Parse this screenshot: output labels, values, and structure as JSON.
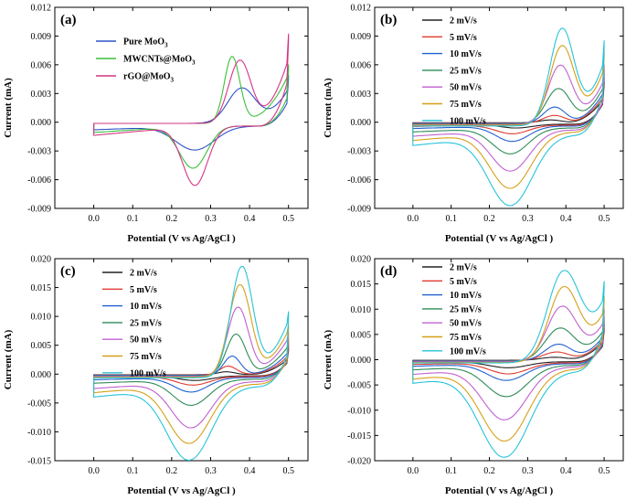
{
  "chart_data": [
    {
      "type": "line",
      "panel_label": "(a)",
      "xlabel": "Potential (V vs Ag/AgCl )",
      "ylabel": "Current (mA)",
      "xlim": [
        -0.1,
        0.55
      ],
      "ylim": [
        -0.009,
        0.012
      ],
      "xticks": [
        0.0,
        0.1,
        0.2,
        0.3,
        0.4,
        0.5
      ],
      "yticks": [
        -0.009,
        -0.006,
        -0.003,
        0.0,
        0.003,
        0.006,
        0.009,
        0.012
      ],
      "legend_position": "top-left",
      "series": [
        {
          "name": "Pure MoO3",
          "legend": [
            "Pure MoO",
            "3",
            ""
          ],
          "color": "#2f52c9",
          "params": {
            "base": 0.0,
            "ox": 0.0037,
            "oxPos": 0.38,
            "oxW": 0.05,
            "red": 0.0025,
            "redPos": 0.26,
            "redW": 0.07,
            "end": 0.0049,
            "startGap": 0.0004
          }
        },
        {
          "name": "MWCNTs@MoO3",
          "legend": [
            "MWCNTs@MoO",
            "3",
            ""
          ],
          "color": "#3bbf3b",
          "params": {
            "base": 0.0,
            "ox": 0.007,
            "oxPos": 0.355,
            "oxW": 0.028,
            "red": 0.0044,
            "redPos": 0.255,
            "redW": 0.05,
            "end": 0.006,
            "startGap": 0.0004
          }
        },
        {
          "name": "rGO@MoO3",
          "legend": [
            "rGO@MoO",
            "3",
            ""
          ],
          "color": "#d63584",
          "params": {
            "base": 0.0,
            "ox": 0.0066,
            "oxPos": 0.375,
            "oxW": 0.04,
            "red": 0.0062,
            "redPos": 0.26,
            "redW": 0.045,
            "end": 0.0092,
            "startGap": 0.0004
          }
        }
      ]
    },
    {
      "type": "line",
      "panel_label": "(b)",
      "xlabel": "Potential (V vs Ag/AgCl )",
      "ylabel": "Current (mA)",
      "xlim": [
        -0.1,
        0.55
      ],
      "ylim": [
        -0.009,
        0.012
      ],
      "xticks": [
        0.0,
        0.1,
        0.2,
        0.3,
        0.4,
        0.5
      ],
      "yticks": [
        -0.009,
        -0.006,
        -0.003,
        0.0,
        0.003,
        0.006,
        0.009,
        0.012
      ],
      "legend_position": "top-left",
      "series": [
        {
          "name": "2 mV/s",
          "color": "#222222",
          "params": {
            "ox": 0.0003,
            "oxPos": 0.36,
            "oxW": 0.04,
            "red": 0.0004,
            "redPos": 0.27,
            "redW": 0.06,
            "end": 0.0042,
            "startGap": 0.0002
          }
        },
        {
          "name": "5 mV/s",
          "color": "#e03a2f",
          "params": {
            "ox": 0.0008,
            "oxPos": 0.37,
            "oxW": 0.04,
            "red": 0.0009,
            "redPos": 0.26,
            "redW": 0.06,
            "end": 0.0046,
            "startGap": 0.0003
          }
        },
        {
          "name": "10 mV/s",
          "color": "#2060d0",
          "params": {
            "ox": 0.0017,
            "oxPos": 0.37,
            "oxW": 0.04,
            "red": 0.0016,
            "redPos": 0.26,
            "redW": 0.06,
            "end": 0.005,
            "startGap": 0.0004
          }
        },
        {
          "name": "25 mV/s",
          "color": "#2e8b57",
          "params": {
            "ox": 0.0037,
            "oxPos": 0.38,
            "oxW": 0.045,
            "red": 0.0027,
            "redPos": 0.255,
            "redW": 0.065,
            "end": 0.0055,
            "startGap": 0.0006
          }
        },
        {
          "name": "50 mV/s",
          "color": "#c060d0",
          "params": {
            "ox": 0.0062,
            "oxPos": 0.385,
            "oxW": 0.045,
            "red": 0.0043,
            "redPos": 0.255,
            "redW": 0.07,
            "end": 0.006,
            "startGap": 0.0008
          }
        },
        {
          "name": "75 mV/s",
          "color": "#d4a017",
          "params": {
            "ox": 0.0083,
            "oxPos": 0.39,
            "oxW": 0.045,
            "red": 0.0059,
            "redPos": 0.255,
            "redW": 0.075,
            "end": 0.0075,
            "startGap": 0.001
          }
        },
        {
          "name": "100 mV/s",
          "color": "#27c3d9",
          "params": {
            "ox": 0.0102,
            "oxPos": 0.39,
            "oxW": 0.045,
            "red": 0.0074,
            "redPos": 0.255,
            "redW": 0.08,
            "end": 0.0085,
            "startGap": 0.0013
          }
        }
      ]
    },
    {
      "type": "line",
      "panel_label": "(c)",
      "xlabel": "Potential (V vs Ag/AgCl )",
      "ylabel": "Current (mA)",
      "xlim": [
        -0.1,
        0.55
      ],
      "ylim": [
        -0.015,
        0.02
      ],
      "xticks": [
        0.0,
        0.1,
        0.2,
        0.3,
        0.4,
        0.5
      ],
      "yticks": [
        -0.015,
        -0.01,
        -0.005,
        0.0,
        0.005,
        0.01,
        0.015,
        0.02
      ],
      "ytick_labels": [
        "-0.015",
        "-0.010",
        "-0.005",
        "0.000",
        "0.005",
        "0.010",
        "0.015",
        "0.020"
      ],
      "legend_position": "top-left",
      "series": [
        {
          "name": "2 mV/s",
          "color": "#222222",
          "params": {
            "ox": 0.0005,
            "oxPos": 0.34,
            "oxW": 0.03,
            "red": 0.0008,
            "redPos": 0.26,
            "redW": 0.06,
            "end": 0.0045,
            "startGap": 0.0003
          }
        },
        {
          "name": "5 mV/s",
          "color": "#e03a2f",
          "params": {
            "ox": 0.0015,
            "oxPos": 0.345,
            "oxW": 0.03,
            "red": 0.0015,
            "redPos": 0.255,
            "redW": 0.06,
            "end": 0.005,
            "startGap": 0.0004
          }
        },
        {
          "name": "10 mV/s",
          "color": "#2060d0",
          "params": {
            "ox": 0.0033,
            "oxPos": 0.355,
            "oxW": 0.03,
            "red": 0.0025,
            "redPos": 0.25,
            "redW": 0.06,
            "end": 0.0055,
            "startGap": 0.0006
          }
        },
        {
          "name": "25 mV/s",
          "color": "#2e8b57",
          "params": {
            "ox": 0.0072,
            "oxPos": 0.365,
            "oxW": 0.035,
            "red": 0.0045,
            "redPos": 0.25,
            "redW": 0.065,
            "end": 0.0062,
            "startGap": 0.0009
          }
        },
        {
          "name": "50 mV/s",
          "color": "#c060d0",
          "params": {
            "ox": 0.012,
            "oxPos": 0.37,
            "oxW": 0.038,
            "red": 0.008,
            "redPos": 0.25,
            "redW": 0.07,
            "end": 0.0072,
            "startGap": 0.0013
          }
        },
        {
          "name": "75 mV/s",
          "color": "#d4a017",
          "params": {
            "ox": 0.016,
            "oxPos": 0.375,
            "oxW": 0.04,
            "red": 0.0103,
            "redPos": 0.245,
            "redW": 0.075,
            "end": 0.0085,
            "startGap": 0.0017
          }
        },
        {
          "name": "100 mV/s",
          "color": "#27c3d9",
          "params": {
            "ox": 0.0193,
            "oxPos": 0.38,
            "oxW": 0.04,
            "red": 0.0128,
            "redPos": 0.245,
            "redW": 0.08,
            "end": 0.0108,
            "startGap": 0.0021
          }
        }
      ]
    },
    {
      "type": "line",
      "panel_label": "(d)",
      "xlabel": "Potential (V vs Ag/AgCl )",
      "ylabel": "Current (mA)",
      "xlim": [
        -0.1,
        0.55
      ],
      "ylim": [
        -0.02,
        0.02
      ],
      "xticks": [
        0.0,
        0.1,
        0.2,
        0.3,
        0.4,
        0.5
      ],
      "yticks": [
        -0.02,
        -0.015,
        -0.01,
        -0.005,
        0.0,
        0.005,
        0.01,
        0.015,
        0.02
      ],
      "ytick_labels": [
        "-0.020",
        "-0.015",
        "-0.010",
        "-0.005",
        "0.000",
        "0.005",
        "0.010",
        "0.015",
        "0.020"
      ],
      "legend_position": "top-left",
      "series": [
        {
          "name": "2 mV/s",
          "color": "#222222",
          "params": {
            "ox": 0.0006,
            "oxPos": 0.37,
            "oxW": 0.05,
            "red": 0.0012,
            "redPos": 0.25,
            "redW": 0.07,
            "end": 0.0062,
            "startGap": 0.0004
          }
        },
        {
          "name": "5 mV/s",
          "color": "#e03a2f",
          "params": {
            "ox": 0.0017,
            "oxPos": 0.375,
            "oxW": 0.05,
            "red": 0.0022,
            "redPos": 0.25,
            "redW": 0.07,
            "end": 0.0068,
            "startGap": 0.0006
          }
        },
        {
          "name": "10 mV/s",
          "color": "#2060d0",
          "params": {
            "ox": 0.0033,
            "oxPos": 0.38,
            "oxW": 0.05,
            "red": 0.0033,
            "redPos": 0.245,
            "redW": 0.07,
            "end": 0.0075,
            "startGap": 0.0008
          }
        },
        {
          "name": "25 mV/s",
          "color": "#2e8b57",
          "params": {
            "ox": 0.0066,
            "oxPos": 0.385,
            "oxW": 0.055,
            "red": 0.0062,
            "redPos": 0.245,
            "redW": 0.075,
            "end": 0.0085,
            "startGap": 0.0011
          }
        },
        {
          "name": "50 mV/s",
          "color": "#c060d0",
          "params": {
            "ox": 0.011,
            "oxPos": 0.39,
            "oxW": 0.055,
            "red": 0.0105,
            "redPos": 0.24,
            "redW": 0.08,
            "end": 0.01,
            "startGap": 0.0014
          }
        },
        {
          "name": "75 mV/s",
          "color": "#d4a017",
          "params": {
            "ox": 0.015,
            "oxPos": 0.395,
            "oxW": 0.055,
            "red": 0.0143,
            "redPos": 0.24,
            "redW": 0.085,
            "end": 0.0125,
            "startGap": 0.0018
          }
        },
        {
          "name": "100 mV/s",
          "color": "#27c3d9",
          "params": {
            "ox": 0.0183,
            "oxPos": 0.395,
            "oxW": 0.06,
            "red": 0.0171,
            "redPos": 0.24,
            "redW": 0.09,
            "end": 0.0155,
            "startGap": 0.0022
          }
        }
      ]
    }
  ]
}
